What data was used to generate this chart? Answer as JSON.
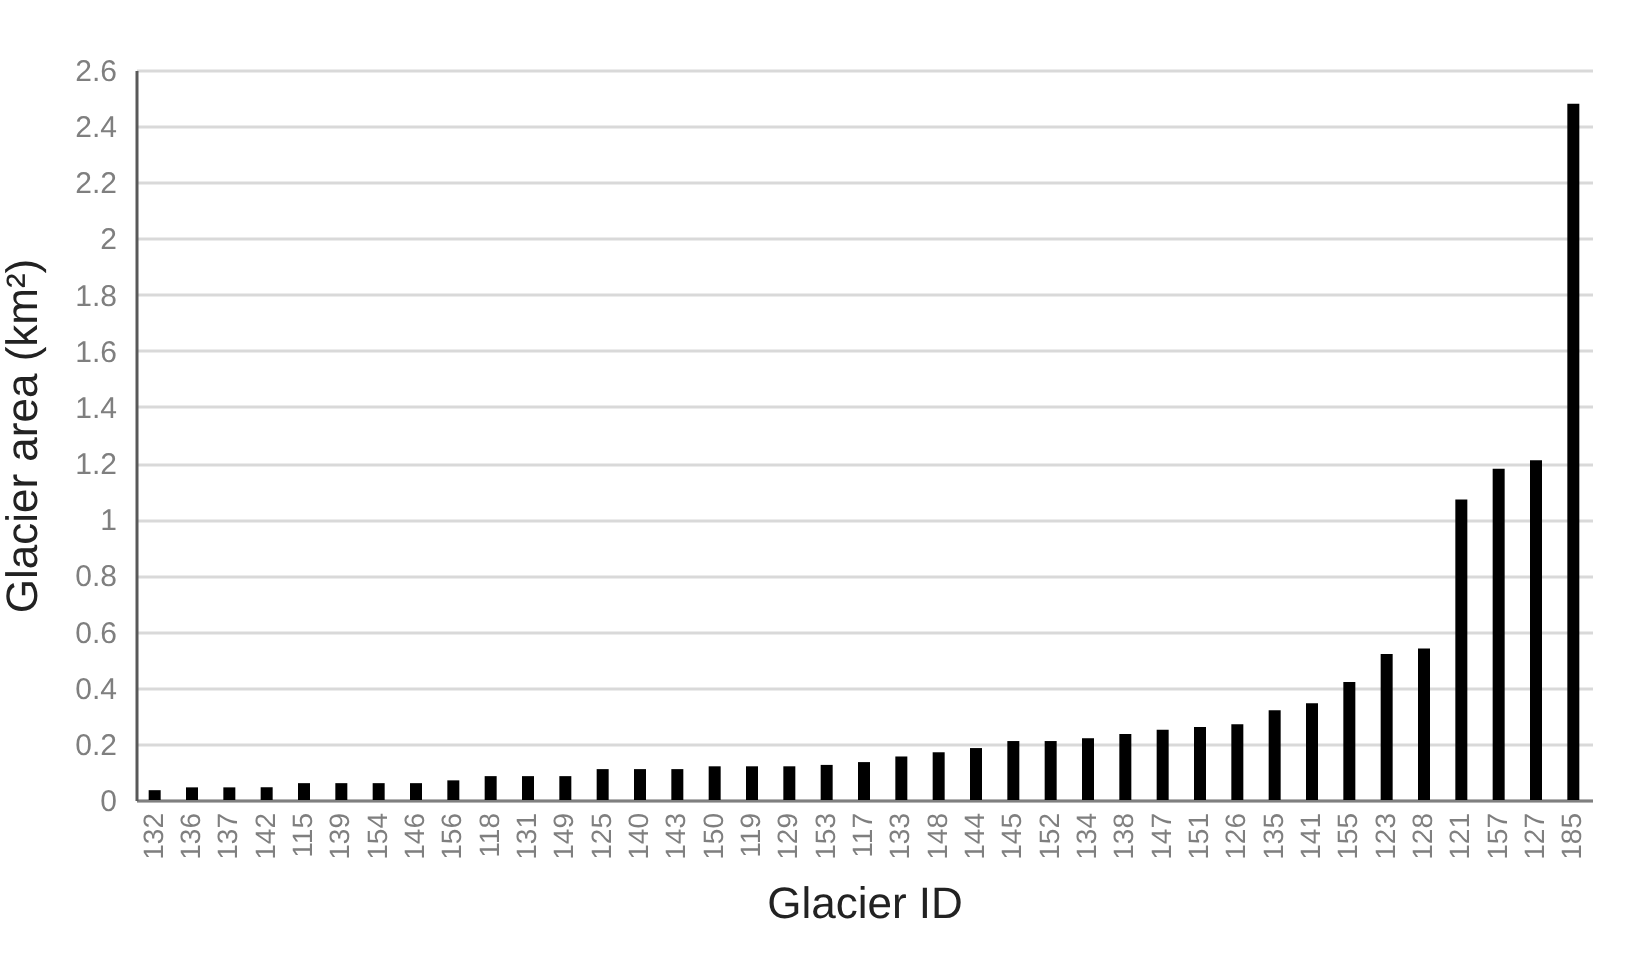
{
  "chart_data": {
    "type": "bar",
    "xlabel": "Glacier ID",
    "ylabel": "Glacier area (km²)",
    "categories": [
      "132",
      "136",
      "137",
      "142",
      "115",
      "139",
      "154",
      "146",
      "156",
      "118",
      "131",
      "149",
      "125",
      "140",
      "143",
      "150",
      "119",
      "129",
      "153",
      "117",
      "133",
      "148",
      "144",
      "145",
      "152",
      "134",
      "138",
      "147",
      "151",
      "126",
      "135",
      "141",
      "155",
      "123",
      "128",
      "121",
      "157",
      "127",
      "185"
    ],
    "values": [
      0.035,
      0.045,
      0.045,
      0.045,
      0.06,
      0.06,
      0.06,
      0.06,
      0.07,
      0.085,
      0.085,
      0.085,
      0.11,
      0.11,
      0.11,
      0.12,
      0.12,
      0.12,
      0.125,
      0.135,
      0.155,
      0.17,
      0.185,
      0.21,
      0.21,
      0.22,
      0.235,
      0.25,
      0.26,
      0.27,
      0.32,
      0.345,
      0.42,
      0.52,
      0.54,
      1.07,
      1.18,
      1.21,
      2.48
    ],
    "color": "#000000",
    "ylim": [
      0,
      2.6
    ],
    "yticks": [
      0,
      0.2,
      0.4,
      0.6,
      0.8,
      1,
      1.2,
      1.4,
      1.6,
      1.8,
      2,
      2.2,
      2.4,
      2.6
    ],
    "grid": "y"
  }
}
